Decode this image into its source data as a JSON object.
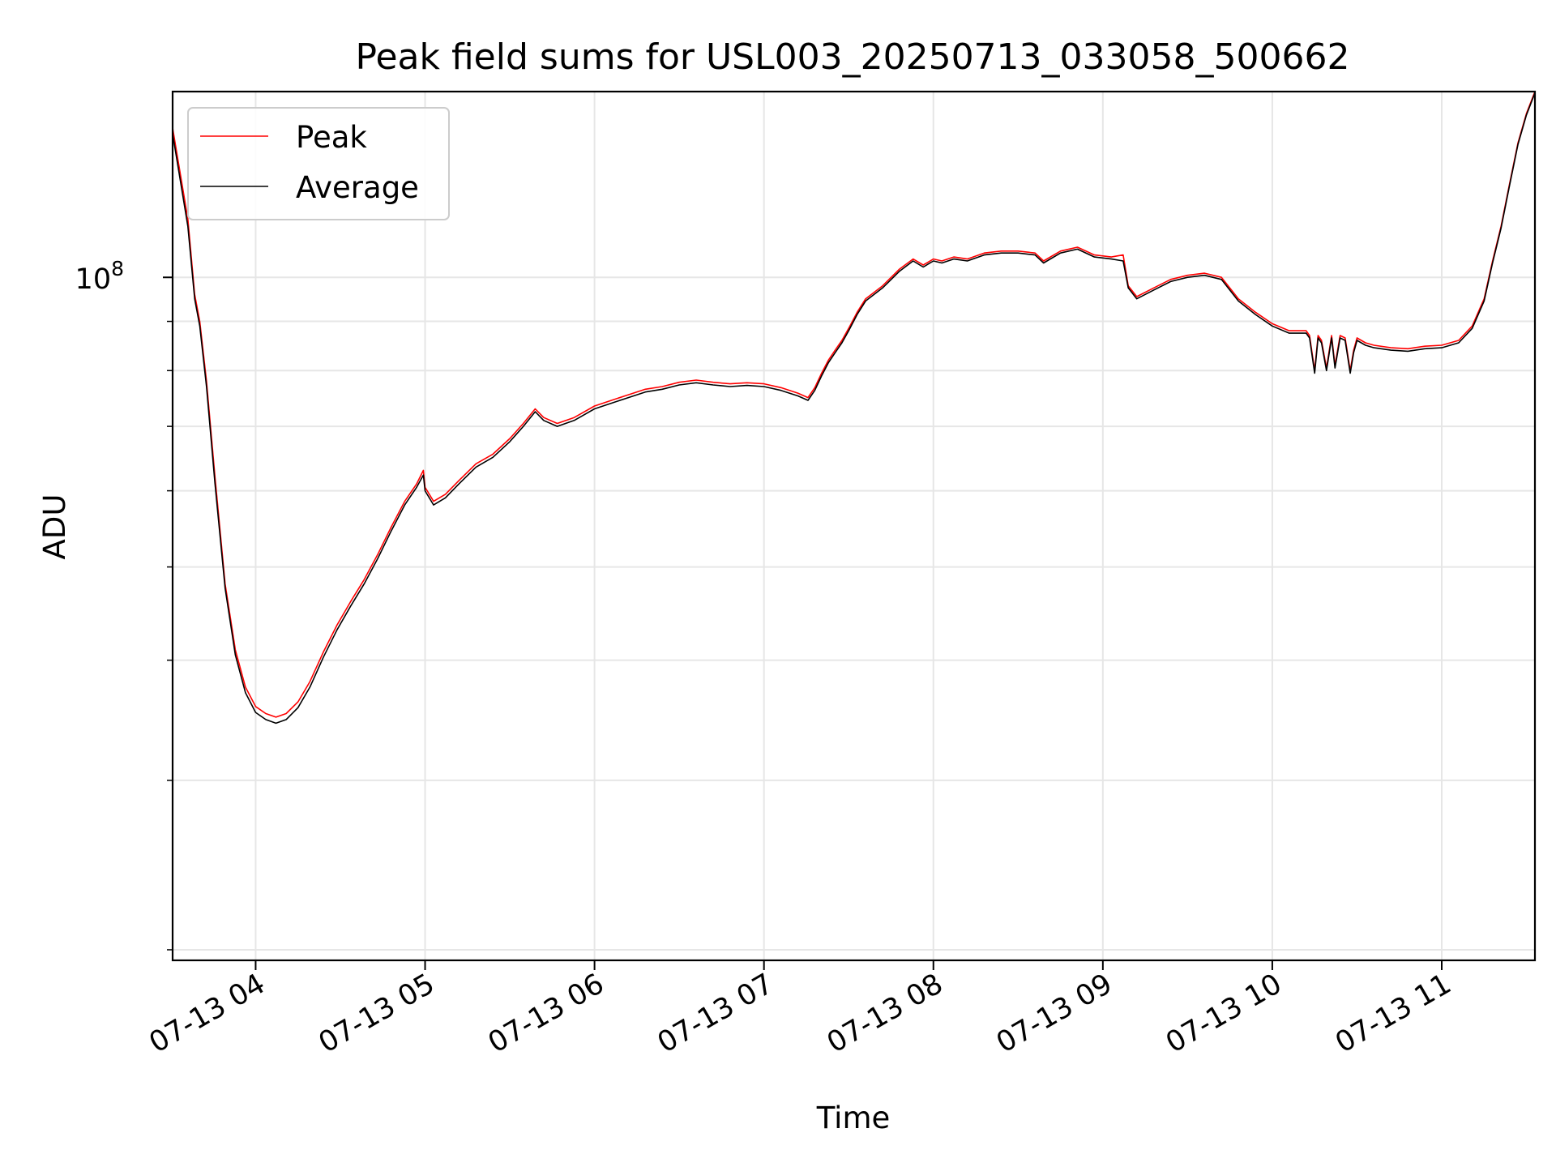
{
  "chart_data": {
    "type": "line",
    "title": "Peak field sums for USL003_20250713_033058_500662",
    "xlabel": "Time",
    "ylabel": "ADU",
    "x_range_hours": [
      3.51,
      11.55
    ],
    "x_ticks": [
      {
        "hour": 4,
        "label": "07-13 04"
      },
      {
        "hour": 5,
        "label": "07-13 05"
      },
      {
        "hour": 6,
        "label": "07-13 06"
      },
      {
        "hour": 7,
        "label": "07-13 07"
      },
      {
        "hour": 8,
        "label": "07-13 08"
      },
      {
        "hour": 9,
        "label": "07-13 09"
      },
      {
        "hour": 10,
        "label": "07-13 10"
      },
      {
        "hour": 11,
        "label": "07-13 11"
      }
    ],
    "y_scale": "log",
    "ylim": [
      19500000,
      156000000
    ],
    "y_major_ticks": [
      {
        "value": 100000000,
        "base": "10",
        "exp": "8"
      }
    ],
    "y_minor_ticks": [
      20000000,
      30000000,
      40000000,
      50000000,
      60000000,
      70000000,
      80000000,
      90000000,
      200000000
    ],
    "grid": true,
    "legend": {
      "placement": "top-left",
      "entries": [
        "Peak",
        "Average"
      ]
    },
    "colors": {
      "Peak": "#ff0000",
      "Average": "#000000"
    },
    "series": [
      {
        "name": "Peak",
        "x": [
          3.51,
          3.6,
          3.64,
          3.67,
          3.71,
          3.76,
          3.82,
          3.88,
          3.94,
          4.0,
          4.06,
          4.12,
          4.18,
          4.25,
          4.32,
          4.4,
          4.48,
          4.56,
          4.64,
          4.72,
          4.8,
          4.88,
          4.95,
          4.99,
          5.0,
          5.05,
          5.12,
          5.2,
          5.3,
          5.4,
          5.5,
          5.58,
          5.65,
          5.7,
          5.78,
          5.88,
          6.0,
          6.1,
          6.2,
          6.3,
          6.4,
          6.5,
          6.6,
          6.7,
          6.8,
          6.9,
          7.0,
          7.1,
          7.2,
          7.26,
          7.3,
          7.34,
          7.38,
          7.42,
          7.46,
          7.5,
          7.55,
          7.6,
          7.7,
          7.8,
          7.88,
          7.94,
          8.0,
          8.05,
          8.12,
          8.2,
          8.3,
          8.4,
          8.5,
          8.6,
          8.65,
          8.75,
          8.85,
          8.95,
          9.05,
          9.12,
          9.15,
          9.2,
          9.3,
          9.4,
          9.5,
          9.6,
          9.7,
          9.8,
          9.9,
          10.0,
          10.1,
          10.2,
          10.22,
          10.25,
          10.27,
          10.29,
          10.32,
          10.35,
          10.37,
          10.4,
          10.43,
          10.46,
          10.48,
          10.5,
          10.55,
          10.6,
          10.7,
          10.8,
          10.9,
          11.0,
          11.1,
          11.18,
          11.25,
          11.3,
          11.35,
          11.4,
          11.45,
          11.5,
          11.55
        ],
        "y": [
          143000000,
          115000000,
          96000000,
          90000000,
          78000000,
          62000000,
          48000000,
          41000000,
          37500000,
          35800000,
          35200000,
          34900000,
          35200000,
          36200000,
          38000000,
          40800000,
          43500000,
          46000000,
          48500000,
          51500000,
          55000000,
          58500000,
          61000000,
          63000000,
          60500000,
          58500000,
          59500000,
          61500000,
          64000000,
          65500000,
          68000000,
          70500000,
          73000000,
          71500000,
          70500000,
          71500000,
          73500000,
          74500000,
          75500000,
          76500000,
          77000000,
          77800000,
          78200000,
          77800000,
          77500000,
          77700000,
          77500000,
          76800000,
          75800000,
          75000000,
          76800000,
          79500000,
          82000000,
          84000000,
          86000000,
          88500000,
          92000000,
          95000000,
          98000000,
          102000000,
          104500000,
          103000000,
          104500000,
          104000000,
          105000000,
          104500000,
          106000000,
          106500000,
          106500000,
          106000000,
          104000000,
          106500000,
          107500000,
          105500000,
          105000000,
          105500000,
          98000000,
          95500000,
          97500000,
          99500000,
          100500000,
          101000000,
          100000000,
          95000000,
          92000000,
          89500000,
          88000000,
          88000000,
          87000000,
          80000000,
          87000000,
          86000000,
          80500000,
          87000000,
          81000000,
          87000000,
          86500000,
          80000000,
          84000000,
          86500000,
          85500000,
          85000000,
          84500000,
          84300000,
          84800000,
          85000000,
          86000000,
          89000000,
          95000000,
          104000000,
          113000000,
          125000000,
          138000000,
          148000000,
          156000000
        ]
      },
      {
        "name": "Average",
        "x": [
          3.51,
          3.6,
          3.64,
          3.67,
          3.71,
          3.76,
          3.82,
          3.88,
          3.94,
          4.0,
          4.06,
          4.12,
          4.18,
          4.25,
          4.32,
          4.4,
          4.48,
          4.56,
          4.64,
          4.72,
          4.8,
          4.88,
          4.95,
          4.99,
          5.0,
          5.05,
          5.12,
          5.2,
          5.3,
          5.4,
          5.5,
          5.58,
          5.65,
          5.7,
          5.78,
          5.88,
          6.0,
          6.1,
          6.2,
          6.3,
          6.4,
          6.5,
          6.6,
          6.7,
          6.8,
          6.9,
          7.0,
          7.1,
          7.2,
          7.26,
          7.3,
          7.34,
          7.38,
          7.42,
          7.46,
          7.5,
          7.55,
          7.6,
          7.7,
          7.8,
          7.88,
          7.94,
          8.0,
          8.05,
          8.12,
          8.2,
          8.3,
          8.4,
          8.5,
          8.6,
          8.65,
          8.75,
          8.85,
          8.95,
          9.05,
          9.12,
          9.15,
          9.2,
          9.3,
          9.4,
          9.5,
          9.6,
          9.7,
          9.8,
          9.9,
          10.0,
          10.1,
          10.2,
          10.22,
          10.25,
          10.27,
          10.29,
          10.32,
          10.35,
          10.37,
          10.4,
          10.43,
          10.46,
          10.48,
          10.5,
          10.55,
          10.6,
          10.7,
          10.8,
          10.9,
          11.0,
          11.1,
          11.18,
          11.25,
          11.3,
          11.35,
          11.4,
          11.45,
          11.5,
          11.55
        ],
        "y": [
          141000000,
          113000000,
          95000000,
          89000000,
          77000000,
          61000000,
          47500000,
          40500000,
          37000000,
          35300000,
          34700000,
          34400000,
          34700000,
          35700000,
          37500000,
          40300000,
          43000000,
          45500000,
          48000000,
          51000000,
          54500000,
          58000000,
          60500000,
          62300000,
          60000000,
          58000000,
          59000000,
          61000000,
          63500000,
          65000000,
          67500000,
          70000000,
          72500000,
          71000000,
          70000000,
          71000000,
          73000000,
          74000000,
          75000000,
          76000000,
          76500000,
          77300000,
          77700000,
          77300000,
          77000000,
          77200000,
          77000000,
          76300000,
          75300000,
          74500000,
          76300000,
          79000000,
          81500000,
          83500000,
          85500000,
          88000000,
          91500000,
          94500000,
          97500000,
          101500000,
          104000000,
          102500000,
          104000000,
          103500000,
          104500000,
          104000000,
          105500000,
          106000000,
          106000000,
          105500000,
          103500000,
          106000000,
          107000000,
          105000000,
          104500000,
          104000000,
          97500000,
          95000000,
          97000000,
          99000000,
          100000000,
          100500000,
          99500000,
          94500000,
          91500000,
          89000000,
          87500000,
          87500000,
          86500000,
          79500000,
          86500000,
          85500000,
          80000000,
          86500000,
          80500000,
          86500000,
          86000000,
          79500000,
          83500000,
          86000000,
          85000000,
          84500000,
          84000000,
          83800000,
          84300000,
          84500000,
          85500000,
          88500000,
          94500000,
          103500000,
          112500000,
          124500000,
          137500000,
          147500000,
          155500000
        ]
      }
    ]
  }
}
